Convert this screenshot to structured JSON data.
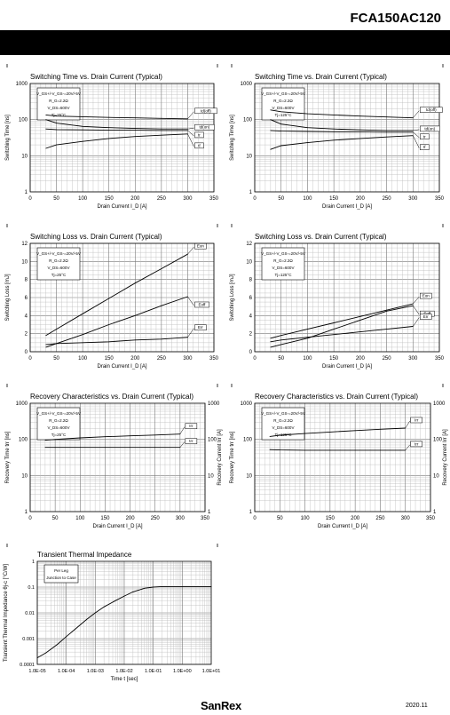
{
  "header": {
    "part_number": "FCA150AC120"
  },
  "footer": {
    "logo": "SanRex",
    "date": "2020.11"
  },
  "chart_data": [
    {
      "type": "line",
      "title": "Switching Time vs. Drain Current (Typical)",
      "xlabel": "Drain Current  I_D [A]",
      "ylabel": "Switching Time [ns]",
      "xlim": [
        0,
        350
      ],
      "ylim": [
        1,
        1000
      ],
      "ylog": true,
      "xticks": [
        "0",
        "50",
        "100",
        "150",
        "200",
        "250",
        "300",
        "350"
      ],
      "yticks": [
        "1",
        "10",
        "100",
        "1000"
      ],
      "conditions": [
        "V_GS+/-V_GS-=20V/-5V",
        "R_G=2.2Ω",
        "V_DS=600V",
        "Tj=25°C"
      ],
      "series": [
        {
          "name": "td(off)",
          "x": [
            30,
            50,
            100,
            150,
            200,
            250,
            300
          ],
          "y": [
            135,
            125,
            120,
            115,
            112,
            108,
            105
          ]
        },
        {
          "name": "td(on)",
          "x": [
            30,
            50,
            100,
            150,
            200,
            250,
            300
          ],
          "y": [
            100,
            80,
            65,
            60,
            57,
            55,
            55
          ]
        },
        {
          "name": "tr",
          "x": [
            30,
            50,
            100,
            150,
            200,
            250,
            300
          ],
          "y": [
            55,
            53,
            52,
            51,
            51,
            50,
            50
          ]
        },
        {
          "name": "tf",
          "x": [
            30,
            50,
            100,
            150,
            200,
            250,
            300
          ],
          "y": [
            16,
            20,
            25,
            30,
            34,
            37,
            40
          ]
        }
      ]
    },
    {
      "type": "line",
      "title": "Switching Time vs. Drain Current (Typical)",
      "xlabel": "Drain Current  I_D [A]",
      "ylabel": "Switching Time [ns]",
      "xlim": [
        0,
        350
      ],
      "ylim": [
        1,
        1000
      ],
      "ylog": true,
      "xticks": [
        "0",
        "50",
        "100",
        "150",
        "200",
        "250",
        "300",
        "350"
      ],
      "yticks": [
        "1",
        "10",
        "100",
        "1000"
      ],
      "conditions": [
        "V_GS+/-V_GS-=20V/-5V",
        "R_G=2.2Ω",
        "V_DS=600V",
        "Tj=125°C"
      ],
      "series": [
        {
          "name": "td(off)",
          "x": [
            30,
            50,
            100,
            150,
            200,
            250,
            300
          ],
          "y": [
            185,
            165,
            145,
            135,
            125,
            118,
            112
          ]
        },
        {
          "name": "td(on)",
          "x": [
            30,
            50,
            100,
            150,
            200,
            250,
            300
          ],
          "y": [
            100,
            75,
            60,
            55,
            52,
            50,
            50
          ]
        },
        {
          "name": "tr",
          "x": [
            30,
            50,
            100,
            150,
            200,
            250,
            300
          ],
          "y": [
            50,
            48,
            47,
            46,
            46,
            45,
            45
          ]
        },
        {
          "name": "tf",
          "x": [
            30,
            50,
            100,
            150,
            200,
            250,
            300
          ],
          "y": [
            15,
            19,
            23,
            27,
            30,
            33,
            36
          ]
        }
      ]
    },
    {
      "type": "line",
      "title": "Switching Loss vs. Drain Current (Typical)",
      "xlabel": "Drain Current  I_D [A]",
      "ylabel": "Switching Loss [mJ]",
      "xlim": [
        0,
        350
      ],
      "ylim": [
        0,
        12
      ],
      "ylog": false,
      "xticks": [
        "0",
        "50",
        "100",
        "150",
        "200",
        "250",
        "300",
        "350"
      ],
      "yticks": [
        "0",
        "2",
        "4",
        "6",
        "8",
        "10",
        "12"
      ],
      "conditions": [
        "V_GS+/-V_GS-=20V/-5V",
        "R_G=2.2Ω",
        "V_DS=600V",
        "Tj=25°C"
      ],
      "series": [
        {
          "name": "Eon",
          "x": [
            30,
            50,
            100,
            150,
            200,
            250,
            300
          ],
          "y": [
            1.8,
            2.5,
            4.2,
            5.9,
            7.6,
            9.2,
            10.8
          ]
        },
        {
          "name": "Eoff",
          "x": [
            30,
            50,
            100,
            150,
            200,
            250,
            300
          ],
          "y": [
            0.5,
            0.9,
            1.9,
            3.0,
            4.0,
            5.1,
            6.1
          ]
        },
        {
          "name": "Err",
          "x": [
            30,
            50,
            100,
            150,
            200,
            250,
            300
          ],
          "y": [
            0.8,
            0.9,
            1.0,
            1.1,
            1.3,
            1.4,
            1.6
          ]
        }
      ]
    },
    {
      "type": "line",
      "title": "Switching Loss vs. Drain Current (Typical)",
      "xlabel": "Drain Current  I_D [A]",
      "ylabel": "Switching Loss [mJ]",
      "xlim": [
        0,
        350
      ],
      "ylim": [
        0,
        12
      ],
      "ylog": false,
      "xticks": [
        "0",
        "50",
        "100",
        "150",
        "200",
        "250",
        "300",
        "350"
      ],
      "yticks": [
        "0",
        "2",
        "4",
        "6",
        "8",
        "10",
        "12"
      ],
      "conditions": [
        "V_GS+/-V_GS-=20V/-5V",
        "R_G=2.2Ω",
        "V_DS=600V",
        "Tj=125°C"
      ],
      "series": [
        {
          "name": "Eon",
          "x": [
            30,
            50,
            100,
            150,
            200,
            250,
            300
          ],
          "y": [
            1.5,
            1.8,
            2.5,
            3.2,
            3.9,
            4.6,
            5.3
          ]
        },
        {
          "name": "Eoff",
          "x": [
            30,
            50,
            100,
            150,
            200,
            250,
            300
          ],
          "y": [
            0.5,
            0.8,
            1.5,
            2.5,
            3.5,
            4.5,
            5.1
          ]
        },
        {
          "name": "Err",
          "x": [
            30,
            50,
            100,
            150,
            200,
            250,
            300
          ],
          "y": [
            1.1,
            1.3,
            1.6,
            1.9,
            2.2,
            2.5,
            2.8
          ]
        }
      ]
    },
    {
      "type": "line",
      "title": "Recovery Characteristics vs. Drain Current (Typical)",
      "xlabel": "Drain Current  I_D [A]",
      "ylabel": "Recovery Time  trr [ns]",
      "ylabel_right": "Recovery Current  Irr [A]",
      "xlim": [
        0,
        350
      ],
      "ylim": [
        1,
        1000
      ],
      "ylog": true,
      "xticks": [
        "0",
        "50",
        "100",
        "150",
        "200",
        "250",
        "300",
        "350"
      ],
      "yticks": [
        "1",
        "10",
        "100",
        "1000"
      ],
      "conditions": [
        "V_GS+/-V_GS-=20V/-5V",
        "R_G=2.2Ω",
        "V_DS=600V",
        "Tj=25°C"
      ],
      "series": [
        {
          "name": "Irr",
          "x": [
            30,
            50,
            100,
            150,
            200,
            250,
            300
          ],
          "y": [
            95,
            100,
            110,
            118,
            125,
            132,
            140
          ]
        },
        {
          "name": "trr",
          "x": [
            30,
            50,
            100,
            150,
            200,
            250,
            300
          ],
          "y": [
            60,
            60,
            60,
            60,
            60,
            60,
            60
          ]
        }
      ]
    },
    {
      "type": "line",
      "title": "Recovery Characteristics vs. Drain Current (Typical)",
      "xlabel": "Drain Current  I_D [A]",
      "ylabel": "Recovery Time  trr [ns]",
      "ylabel_right": "Recovery Current  Irr [A]",
      "xlim": [
        0,
        350
      ],
      "ylim": [
        1,
        1000
      ],
      "ylog": true,
      "xticks": [
        "0",
        "50",
        "100",
        "150",
        "200",
        "250",
        "300",
        "350"
      ],
      "yticks": [
        "1",
        "10",
        "100",
        "1000"
      ],
      "conditions": [
        "V_GS+/-V_GS-=20V/-5V",
        "R_G=2.2Ω",
        "V_DS=600V",
        "Tj=125°C"
      ],
      "series": [
        {
          "name": "Irr",
          "x": [
            30,
            50,
            100,
            150,
            200,
            250,
            300
          ],
          "y": [
            120,
            130,
            145,
            160,
            175,
            190,
            205
          ]
        },
        {
          "name": "trr",
          "x": [
            30,
            50,
            100,
            150,
            200,
            250,
            300
          ],
          "y": [
            52,
            51,
            50,
            50,
            50,
            50,
            50
          ]
        }
      ]
    },
    {
      "type": "line",
      "title": "Transient Thermal Impedance",
      "xlabel": "Time t [sec]",
      "ylabel": "Transient Thermal Impedance  θj-c [°C/W]",
      "xlim": [
        1e-05,
        10
      ],
      "ylim": [
        0.0001,
        1
      ],
      "xlog": true,
      "ylog": true,
      "xticks": [
        "1.0E-05",
        "1.0E-04",
        "1.0E-03",
        "1.0E-02",
        "1.0E-01",
        "1.0E+00",
        "1.0E+01"
      ],
      "yticks": [
        "0.0001",
        "0.001",
        "0.01",
        "0.1",
        "1"
      ],
      "conditions": [
        "Per Leg",
        "Junction to Case"
      ],
      "series": [
        {
          "name": "",
          "x": [
            1e-05,
            2e-05,
            5e-05,
            0.0001,
            0.0002,
            0.0005,
            0.001,
            0.002,
            0.005,
            0.01,
            0.02,
            0.05,
            0.1,
            0.2,
            1,
            10
          ],
          "y": [
            0.00018,
            0.00028,
            0.0006,
            0.0012,
            0.0023,
            0.0055,
            0.01,
            0.017,
            0.03,
            0.045,
            0.065,
            0.09,
            0.1,
            0.105,
            0.105,
            0.105
          ]
        }
      ]
    }
  ]
}
